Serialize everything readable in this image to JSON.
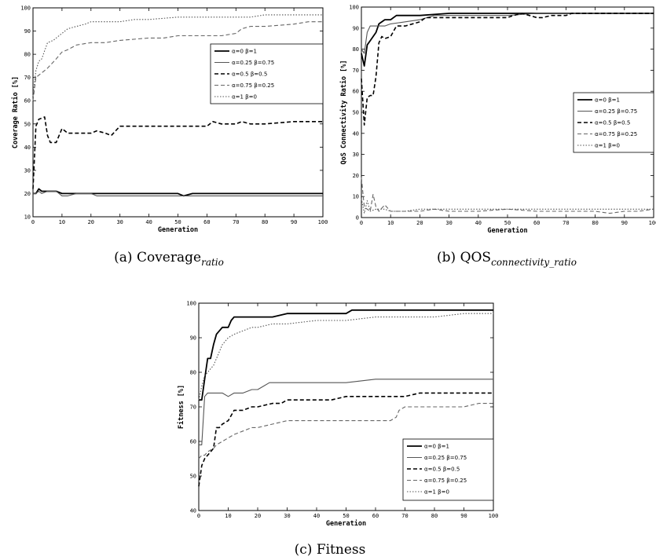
{
  "chart_data": [
    {
      "type": "line",
      "id": "a",
      "caption": {
        "prefix": "(a) ",
        "main": "Coverage",
        "sub": "ratio"
      },
      "xlabel": "Generation",
      "ylabel": "Coverage Ratio [%]",
      "xlim": [
        0,
        100
      ],
      "ylim": [
        10,
        100
      ],
      "xticks": [
        0,
        10,
        20,
        30,
        40,
        50,
        60,
        70,
        80,
        90,
        100
      ],
      "yticks": [
        10,
        20,
        30,
        40,
        50,
        60,
        70,
        80,
        90,
        100
      ],
      "legend_position": "top-right",
      "series": [
        {
          "name": "α=0  β=1",
          "style": "solid-thick",
          "x": [
            0,
            1,
            2,
            3,
            5,
            8,
            10,
            12,
            15,
            20,
            25,
            30,
            40,
            50,
            52,
            55,
            60,
            70,
            80,
            90,
            100
          ],
          "y": [
            20,
            20,
            22,
            21,
            21,
            21,
            20,
            20,
            20,
            20,
            20,
            20,
            20,
            20,
            19,
            20,
            20,
            20,
            20,
            20,
            20
          ]
        },
        {
          "name": "α=0.25  β=0.75",
          "style": "solid-thin",
          "x": [
            0,
            1,
            2,
            3,
            5,
            8,
            10,
            12,
            15,
            20,
            22,
            25,
            30,
            40,
            50,
            52,
            55,
            60,
            70,
            80,
            90,
            100
          ],
          "y": [
            20,
            20,
            21,
            20,
            21,
            21,
            19,
            19,
            20,
            20,
            19,
            19,
            19,
            19,
            19,
            19,
            19,
            19,
            19,
            19,
            19,
            19
          ]
        },
        {
          "name": "α=0.5  β=0.5",
          "style": "dashed-thick",
          "x": [
            0,
            1,
            2,
            4,
            5,
            6,
            8,
            10,
            12,
            15,
            20,
            22,
            25,
            27,
            30,
            40,
            50,
            60,
            62,
            65,
            70,
            72,
            75,
            80,
            90,
            100
          ],
          "y": [
            22,
            49,
            52,
            53,
            45,
            42,
            42,
            48,
            46,
            46,
            46,
            47,
            46,
            45,
            49,
            49,
            49,
            49,
            51,
            50,
            50,
            51,
            50,
            50,
            51,
            51
          ]
        },
        {
          "name": "α=0.75  β=0.25",
          "style": "dashed-thin",
          "x": [
            0,
            1,
            2,
            3,
            5,
            8,
            10,
            12,
            15,
            20,
            25,
            30,
            40,
            45,
            50,
            55,
            60,
            65,
            70,
            72,
            75,
            80,
            90,
            95,
            100
          ],
          "y": [
            60,
            70,
            71,
            72,
            74,
            78,
            81,
            82,
            84,
            85,
            85,
            86,
            87,
            87,
            88,
            88,
            88,
            88,
            89,
            91,
            92,
            92,
            93,
            94,
            94
          ]
        },
        {
          "name": "α=1  β=0",
          "style": "dotted",
          "x": [
            0,
            1,
            2,
            3,
            5,
            7,
            10,
            12,
            15,
            18,
            20,
            25,
            30,
            35,
            40,
            50,
            60,
            70,
            75,
            80,
            85,
            90,
            95,
            100
          ],
          "y": [
            62,
            73,
            77,
            78,
            85,
            86,
            89,
            91,
            92,
            93,
            94,
            94,
            94,
            95,
            95,
            96,
            96,
            96,
            96,
            97,
            97,
            97,
            97,
            97
          ]
        }
      ]
    },
    {
      "type": "line",
      "id": "b",
      "caption": {
        "prefix": "(b) ",
        "main": "QOS",
        "sub": "connectivity_ratio"
      },
      "xlabel": "Generation",
      "ylabel": "QoS Connectivity Ratio [%]",
      "xlim": [
        0,
        100
      ],
      "ylim": [
        0,
        100
      ],
      "xticks": [
        0,
        10,
        20,
        30,
        40,
        50,
        60,
        70,
        80,
        90,
        100
      ],
      "yticks": [
        0,
        10,
        20,
        30,
        40,
        50,
        60,
        70,
        80,
        90,
        100
      ],
      "legend_position": "center-right",
      "series": [
        {
          "name": "α=0  β=1",
          "style": "solid-thick",
          "x": [
            0,
            1,
            2,
            3,
            5,
            6,
            8,
            10,
            12,
            15,
            20,
            30,
            40,
            50,
            60,
            70,
            80,
            90,
            100
          ],
          "y": [
            78,
            72,
            82,
            84,
            88,
            92,
            94,
            94,
            96,
            96,
            96,
            97,
            97,
            97,
            97,
            97,
            97,
            97,
            97
          ]
        },
        {
          "name": "α=0.25  β=0.75",
          "style": "solid-thin",
          "x": [
            0,
            1,
            2,
            3,
            5,
            8,
            10,
            15,
            20,
            25,
            30,
            40,
            50,
            60,
            70,
            80,
            90,
            100
          ],
          "y": [
            80,
            78,
            88,
            91,
            91,
            91,
            92,
            93,
            94,
            96,
            96,
            96,
            96,
            97,
            97,
            97,
            97,
            97
          ]
        },
        {
          "name": "α=0.5  β=0.5",
          "style": "dashed-thick",
          "x": [
            0,
            1,
            2,
            3,
            4,
            5,
            6,
            7,
            8,
            10,
            12,
            15,
            20,
            22,
            25,
            30,
            40,
            50,
            52,
            55,
            60,
            62,
            65,
            70,
            72,
            75,
            80,
            90,
            100
          ],
          "y": [
            66,
            44,
            57,
            58,
            58,
            67,
            83,
            86,
            85,
            86,
            91,
            91,
            93,
            95,
            95,
            95,
            95,
            95,
            96,
            97,
            95,
            95,
            96,
            96,
            97,
            97,
            97,
            97,
            97
          ]
        },
        {
          "name": "α=0.75  β=0.25",
          "style": "dashed-thin",
          "x": [
            0,
            1,
            2,
            3,
            4,
            5,
            6,
            8,
            10,
            15,
            20,
            25,
            30,
            40,
            50,
            60,
            70,
            80,
            85,
            90,
            95,
            100
          ],
          "y": [
            19,
            5,
            4,
            3,
            11,
            5,
            3,
            6,
            3,
            3,
            3,
            4,
            3,
            3,
            4,
            3,
            3,
            3,
            2,
            3,
            3,
            4
          ]
        },
        {
          "name": "α=1  β=0",
          "style": "dotted",
          "x": [
            0,
            1,
            2,
            3,
            5,
            8,
            10,
            15,
            20,
            30,
            40,
            50,
            60,
            70,
            80,
            90,
            100
          ],
          "y": [
            9,
            2,
            8,
            3,
            4,
            4,
            3,
            3,
            4,
            4,
            4,
            4,
            4,
            4,
            4,
            4,
            4
          ]
        }
      ]
    },
    {
      "type": "line",
      "id": "c",
      "caption": {
        "prefix": "(c) ",
        "main": "Fitness",
        "sub": ""
      },
      "xlabel": "Generation",
      "ylabel": "Fitness [%]",
      "xlim": [
        0,
        100
      ],
      "ylim": [
        40,
        100
      ],
      "xticks": [
        0,
        10,
        20,
        30,
        40,
        50,
        60,
        70,
        80,
        90,
        100
      ],
      "yticks": [
        40,
        50,
        60,
        70,
        80,
        90,
        100
      ],
      "legend_position": "bottom-right",
      "series": [
        {
          "name": "α=0  β=1",
          "style": "solid-thick",
          "x": [
            0,
            1,
            2,
            3,
            4,
            5,
            6,
            8,
            10,
            11,
            12,
            15,
            20,
            25,
            30,
            40,
            50,
            52,
            60,
            70,
            80,
            90,
            100
          ],
          "y": [
            72,
            72,
            78,
            84,
            84,
            88,
            91,
            93,
            93,
            95,
            96,
            96,
            96,
            96,
            97,
            97,
            97,
            98,
            98,
            98,
            98,
            98,
            98
          ]
        },
        {
          "name": "α=0.25  β=0.75",
          "style": "solid-thin",
          "x": [
            0,
            1,
            2,
            3,
            5,
            8,
            10,
            12,
            15,
            18,
            20,
            22,
            24,
            25,
            30,
            40,
            50,
            60,
            70,
            80,
            90,
            100
          ],
          "y": [
            59,
            59,
            73,
            74,
            74,
            74,
            73,
            74,
            74,
            75,
            75,
            76,
            77,
            77,
            77,
            77,
            77,
            78,
            78,
            78,
            78,
            78
          ]
        },
        {
          "name": "α=0.5  β=0.5",
          "style": "dashed-thick",
          "x": [
            0,
            1,
            2,
            3,
            5,
            6,
            7,
            8,
            10,
            12,
            15,
            18,
            20,
            25,
            28,
            30,
            40,
            45,
            50,
            60,
            65,
            70,
            75,
            80,
            90,
            100
          ],
          "y": [
            47,
            53,
            55,
            56,
            58,
            64,
            64,
            65,
            66,
            69,
            69,
            70,
            70,
            71,
            71,
            72,
            72,
            72,
            73,
            73,
            73,
            73,
            74,
            74,
            74,
            74
          ]
        },
        {
          "name": "α=0.75  β=0.25",
          "style": "dashed-thin",
          "x": [
            0,
            1,
            2,
            3,
            5,
            6,
            8,
            10,
            12,
            15,
            18,
            20,
            25,
            30,
            40,
            50,
            60,
            65,
            67,
            68,
            70,
            75,
            80,
            90,
            95,
            100
          ],
          "y": [
            55,
            56,
            56,
            57,
            58,
            59,
            60,
            61,
            62,
            63,
            64,
            64,
            65,
            66,
            66,
            66,
            66,
            66,
            67,
            69,
            70,
            70,
            70,
            70,
            71,
            71
          ]
        },
        {
          "name": "α=1  β=0",
          "style": "dotted",
          "x": [
            0,
            1,
            2,
            3,
            5,
            7,
            8,
            10,
            12,
            15,
            18,
            20,
            25,
            30,
            40,
            50,
            60,
            70,
            80,
            90,
            100
          ],
          "y": [
            72,
            76,
            79,
            80,
            82,
            86,
            88,
            90,
            91,
            92,
            93,
            93,
            94,
            94,
            95,
            95,
            96,
            96,
            96,
            97,
            97
          ]
        }
      ]
    }
  ]
}
